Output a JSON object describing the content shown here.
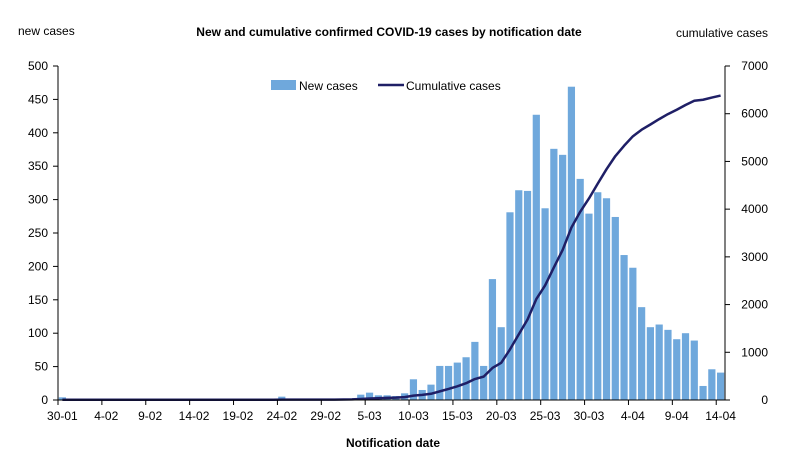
{
  "chart_data": {
    "type": "bar",
    "title": "New and cumulative confirmed COVID-19 cases by notification date",
    "ylabel_left": "new cases",
    "ylabel_right": "cumulative cases",
    "xlabel": "Notification date",
    "ylim_left": [
      0,
      500
    ],
    "ylim_right": [
      0,
      7000
    ],
    "yticks_left": [
      0,
      50,
      100,
      150,
      200,
      250,
      300,
      350,
      400,
      450,
      500
    ],
    "yticks_right": [
      0,
      1000,
      2000,
      3000,
      4000,
      5000,
      6000,
      7000
    ],
    "grid": false,
    "legend_position": "top-center",
    "x": [
      "30-01",
      "31-01",
      "01-02",
      "02-02",
      "03-02",
      "04-02",
      "05-02",
      "06-02",
      "07-02",
      "08-02",
      "09-02",
      "10-02",
      "11-02",
      "12-02",
      "13-02",
      "14-02",
      "15-02",
      "16-02",
      "17-02",
      "18-02",
      "19-02",
      "20-02",
      "21-02",
      "22-02",
      "23-02",
      "24-02",
      "25-02",
      "26-02",
      "27-02",
      "28-02",
      "29-02",
      "01-03",
      "02-03",
      "03-03",
      "04-03",
      "05-03",
      "06-03",
      "07-03",
      "08-03",
      "09-03",
      "10-03",
      "11-03",
      "12-03",
      "13-03",
      "14-03",
      "15-03",
      "16-03",
      "17-03",
      "18-03",
      "19-03",
      "20-03",
      "21-03",
      "22-03",
      "23-03",
      "24-03",
      "25-03",
      "26-03",
      "27-03",
      "28-03",
      "29-03",
      "30-03",
      "31-03",
      "01-04",
      "02-04",
      "03-04",
      "04-04",
      "05-04",
      "06-04",
      "07-04",
      "08-04",
      "09-04",
      "10-04",
      "11-04",
      "12-04",
      "13-04",
      "14-04"
    ],
    "xtick_labels": [
      "30-01",
      "4-02",
      "9-02",
      "14-02",
      "19-02",
      "24-02",
      "29-02",
      "5-03",
      "10-03",
      "15-03",
      "20-03",
      "25-03",
      "30-03",
      "4-04",
      "9-04",
      "14-04"
    ],
    "xtick_indices": [
      0,
      5,
      10,
      15,
      20,
      25,
      30,
      35,
      40,
      45,
      50,
      55,
      60,
      65,
      70,
      75
    ],
    "series": [
      {
        "name": "New cases",
        "kind": "bar",
        "axis": "left",
        "color": "#6fa8dc",
        "values": [
          4,
          0,
          0,
          0,
          0,
          0,
          0,
          0,
          0,
          0,
          0,
          0,
          0,
          0,
          0,
          0,
          0,
          0,
          0,
          0,
          0,
          0,
          0,
          0,
          0,
          5,
          0,
          0,
          0,
          0,
          0,
          0,
          1,
          2,
          8,
          11,
          7,
          7,
          6,
          10,
          31,
          15,
          23,
          51,
          51,
          56,
          64,
          87,
          51,
          181,
          109,
          281,
          314,
          313,
          427,
          287,
          376,
          367,
          469,
          331,
          279,
          311,
          302,
          274,
          217,
          198,
          139,
          109,
          113,
          105,
          91,
          100,
          89,
          21,
          46,
          41
        ]
      },
      {
        "name": "Cumulative cases",
        "kind": "line",
        "axis": "right",
        "color": "#1f1f66",
        "values": [
          4,
          4,
          4,
          4,
          4,
          4,
          4,
          4,
          4,
          4,
          4,
          4,
          4,
          4,
          4,
          4,
          4,
          4,
          4,
          4,
          4,
          4,
          4,
          4,
          4,
          9,
          9,
          9,
          9,
          9,
          9,
          9,
          10,
          12,
          20,
          31,
          38,
          45,
          51,
          61,
          92,
          107,
          130,
          181,
          232,
          288,
          352,
          439,
          490,
          671,
          780,
          1061,
          1375,
          1688,
          2115,
          2402,
          2778,
          3145,
          3614,
          3945,
          4224,
          4535,
          4837,
          5111,
          5328,
          5526,
          5665,
          5774,
          5887,
          5992,
          6083,
          6183,
          6272,
          6293,
          6339,
          6380
        ]
      }
    ]
  }
}
